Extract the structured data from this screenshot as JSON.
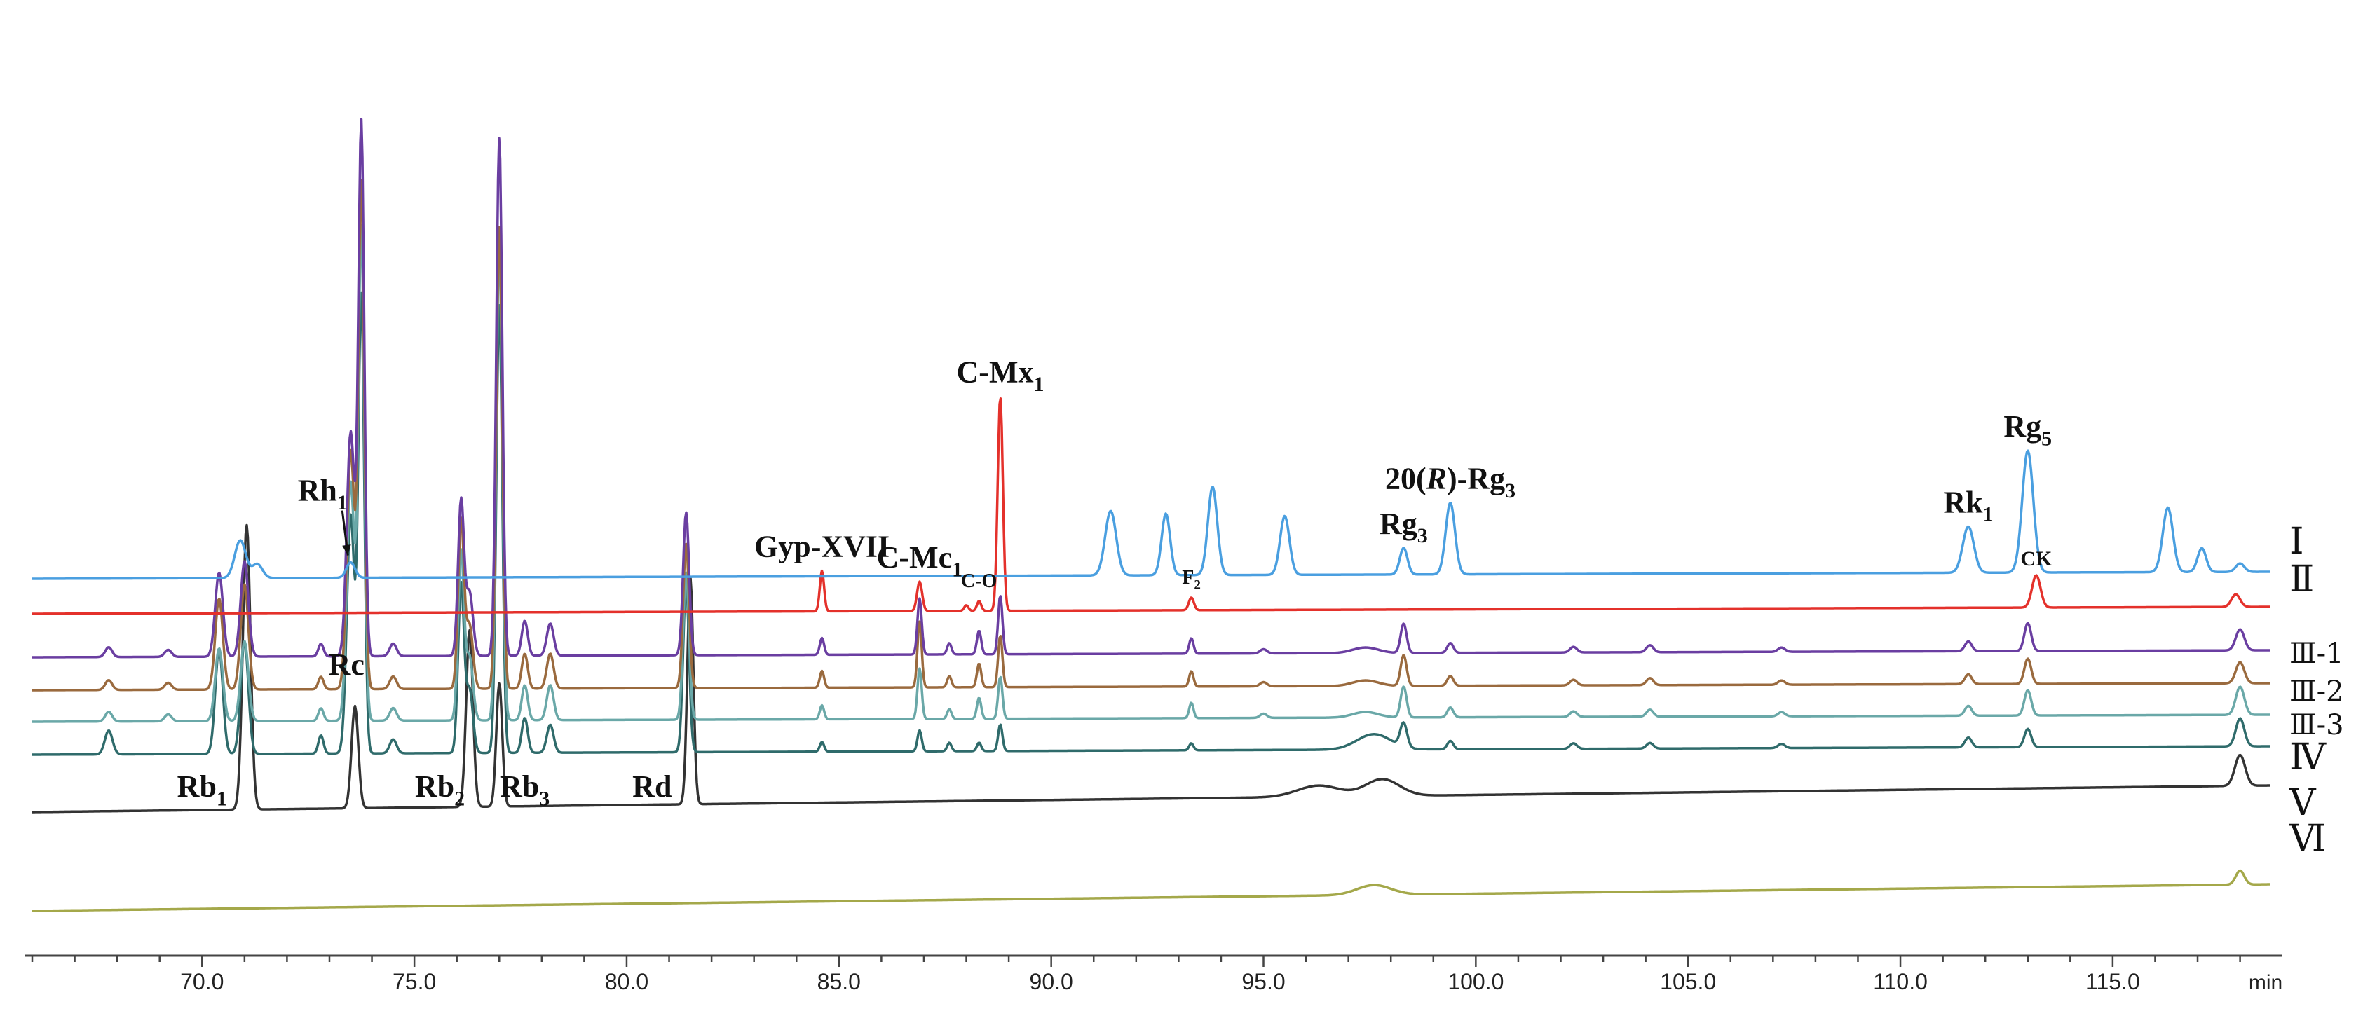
{
  "chart_data": {
    "type": "line",
    "title": "",
    "xlabel": "min",
    "ylabel": "",
    "xlim": [
      66,
      118.7
    ],
    "grid": false,
    "legend": "none",
    "x_ticks": [
      "70.0",
      "75.0",
      "80.0",
      "85.0",
      "90.0",
      "95.0",
      "100.0",
      "105.0",
      "110.0",
      "115.0"
    ],
    "x_tick_values": [
      70,
      75,
      80,
      85,
      90,
      95,
      100,
      105,
      110,
      115
    ],
    "series": [
      {
        "name": "Ⅰ",
        "color": "#4a9fe0",
        "baseline": [
          0,
          0.1
        ],
        "peaks": [
          {
            "t": 70.9,
            "h": 0.54,
            "w": 0.13
          },
          {
            "t": 71.3,
            "h": 0.2,
            "w": 0.12
          },
          {
            "t": 73.5,
            "h": 0.22,
            "w": 0.1
          },
          {
            "t": 91.4,
            "h": 0.92,
            "w": 0.13
          },
          {
            "t": 92.7,
            "h": 0.88,
            "w": 0.1
          },
          {
            "t": 93.8,
            "h": 1.26,
            "w": 0.11
          },
          {
            "t": 95.5,
            "h": 0.84,
            "w": 0.11
          },
          {
            "t": 98.3,
            "h": 0.38,
            "w": 0.09
          },
          {
            "t": 99.4,
            "h": 1.02,
            "w": 0.11
          },
          {
            "t": 111.6,
            "h": 0.66,
            "w": 0.13
          },
          {
            "t": 113.0,
            "h": 1.74,
            "w": 0.13
          },
          {
            "t": 116.3,
            "h": 0.92,
            "w": 0.12
          },
          {
            "t": 117.1,
            "h": 0.34,
            "w": 0.1
          },
          {
            "t": 118.0,
            "h": 0.12,
            "w": 0.1
          }
        ]
      },
      {
        "name": "Ⅱ",
        "color": "#e4312b",
        "baseline": [
          0,
          0.1
        ],
        "peaks": [
          {
            "t": 84.6,
            "h": 0.58,
            "w": 0.05
          },
          {
            "t": 86.9,
            "h": 0.42,
            "w": 0.06
          },
          {
            "t": 88.0,
            "h": 0.08,
            "w": 0.05
          },
          {
            "t": 88.3,
            "h": 0.14,
            "w": 0.05
          },
          {
            "t": 88.8,
            "h": 3.06,
            "w": 0.06
          },
          {
            "t": 93.3,
            "h": 0.18,
            "w": 0.06
          },
          {
            "t": 113.2,
            "h": 0.46,
            "w": 0.1
          },
          {
            "t": 117.9,
            "h": 0.18,
            "w": 0.1
          }
        ]
      },
      {
        "name": "Ⅲ-1",
        "color": "#6a3ea1",
        "baseline": [
          0,
          0.1
        ],
        "peaks": [
          {
            "t": 67.8,
            "h": 0.14,
            "w": 0.08
          },
          {
            "t": 69.2,
            "h": 0.1,
            "w": 0.08
          },
          {
            "t": 70.4,
            "h": 1.2,
            "w": 0.09
          },
          {
            "t": 71.0,
            "h": 1.36,
            "w": 0.09
          },
          {
            "t": 72.8,
            "h": 0.18,
            "w": 0.06
          },
          {
            "t": 73.5,
            "h": 3.2,
            "w": 0.09
          },
          {
            "t": 73.75,
            "h": 7.6,
            "w": 0.07
          },
          {
            "t": 74.5,
            "h": 0.18,
            "w": 0.08
          },
          {
            "t": 76.1,
            "h": 2.22,
            "w": 0.07
          },
          {
            "t": 76.3,
            "h": 0.9,
            "w": 0.08
          },
          {
            "t": 77.0,
            "h": 7.4,
            "w": 0.07
          },
          {
            "t": 77.6,
            "h": 0.5,
            "w": 0.07
          },
          {
            "t": 78.2,
            "h": 0.46,
            "w": 0.08
          },
          {
            "t": 81.4,
            "h": 2.04,
            "w": 0.07
          },
          {
            "t": 84.6,
            "h": 0.24,
            "w": 0.05
          },
          {
            "t": 86.9,
            "h": 0.8,
            "w": 0.05
          },
          {
            "t": 87.6,
            "h": 0.16,
            "w": 0.05
          },
          {
            "t": 88.3,
            "h": 0.34,
            "w": 0.05
          },
          {
            "t": 88.8,
            "h": 0.84,
            "w": 0.05
          },
          {
            "t": 93.3,
            "h": 0.22,
            "w": 0.05
          },
          {
            "t": 95.0,
            "h": 0.06,
            "w": 0.08
          },
          {
            "t": 97.4,
            "h": 0.08,
            "w": 0.3
          },
          {
            "t": 98.3,
            "h": 0.42,
            "w": 0.07
          },
          {
            "t": 99.4,
            "h": 0.14,
            "w": 0.07
          },
          {
            "t": 102.3,
            "h": 0.08,
            "w": 0.08
          },
          {
            "t": 104.1,
            "h": 0.1,
            "w": 0.08
          },
          {
            "t": 107.2,
            "h": 0.06,
            "w": 0.08
          },
          {
            "t": 111.6,
            "h": 0.14,
            "w": 0.08
          },
          {
            "t": 113.0,
            "h": 0.4,
            "w": 0.08
          },
          {
            "t": 118.0,
            "h": 0.3,
            "w": 0.1
          }
        ]
      },
      {
        "name": "Ⅲ-2",
        "color": "#9a6a3e",
        "baseline": [
          0,
          0.1
        ],
        "peaks": [
          {
            "t": 67.8,
            "h": 0.14,
            "w": 0.08
          },
          {
            "t": 69.2,
            "h": 0.1,
            "w": 0.08
          },
          {
            "t": 70.4,
            "h": 1.3,
            "w": 0.09
          },
          {
            "t": 71.0,
            "h": 1.5,
            "w": 0.09
          },
          {
            "t": 72.8,
            "h": 0.18,
            "w": 0.06
          },
          {
            "t": 73.5,
            "h": 3.4,
            "w": 0.09
          },
          {
            "t": 73.75,
            "h": 7.2,
            "w": 0.07
          },
          {
            "t": 74.5,
            "h": 0.18,
            "w": 0.08
          },
          {
            "t": 76.1,
            "h": 2.4,
            "w": 0.07
          },
          {
            "t": 76.3,
            "h": 0.9,
            "w": 0.08
          },
          {
            "t": 77.0,
            "h": 6.6,
            "w": 0.07
          },
          {
            "t": 77.6,
            "h": 0.5,
            "w": 0.07
          },
          {
            "t": 78.2,
            "h": 0.5,
            "w": 0.08
          },
          {
            "t": 81.4,
            "h": 2.06,
            "w": 0.07
          },
          {
            "t": 84.6,
            "h": 0.24,
            "w": 0.05
          },
          {
            "t": 86.9,
            "h": 0.94,
            "w": 0.05
          },
          {
            "t": 87.6,
            "h": 0.16,
            "w": 0.05
          },
          {
            "t": 88.3,
            "h": 0.34,
            "w": 0.05
          },
          {
            "t": 88.8,
            "h": 0.74,
            "w": 0.05
          },
          {
            "t": 93.3,
            "h": 0.22,
            "w": 0.05
          },
          {
            "t": 95.0,
            "h": 0.06,
            "w": 0.08
          },
          {
            "t": 97.4,
            "h": 0.08,
            "w": 0.3
          },
          {
            "t": 98.3,
            "h": 0.44,
            "w": 0.07
          },
          {
            "t": 99.4,
            "h": 0.14,
            "w": 0.07
          },
          {
            "t": 102.3,
            "h": 0.08,
            "w": 0.08
          },
          {
            "t": 104.1,
            "h": 0.1,
            "w": 0.08
          },
          {
            "t": 107.2,
            "h": 0.06,
            "w": 0.08
          },
          {
            "t": 111.6,
            "h": 0.14,
            "w": 0.08
          },
          {
            "t": 113.0,
            "h": 0.36,
            "w": 0.08
          },
          {
            "t": 118.0,
            "h": 0.3,
            "w": 0.1
          }
        ]
      },
      {
        "name": "Ⅲ-3",
        "color": "#6aa8a8",
        "baseline": [
          0,
          0.1
        ],
        "peaks": [
          {
            "t": 67.8,
            "h": 0.14,
            "w": 0.08
          },
          {
            "t": 69.2,
            "h": 0.1,
            "w": 0.08
          },
          {
            "t": 70.4,
            "h": 1.04,
            "w": 0.09
          },
          {
            "t": 71.0,
            "h": 1.14,
            "w": 0.09
          },
          {
            "t": 72.8,
            "h": 0.18,
            "w": 0.06
          },
          {
            "t": 73.5,
            "h": 3.4,
            "w": 0.09
          },
          {
            "t": 73.75,
            "h": 7.0,
            "w": 0.07
          },
          {
            "t": 74.5,
            "h": 0.18,
            "w": 0.08
          },
          {
            "t": 76.1,
            "h": 2.4,
            "w": 0.07
          },
          {
            "t": 76.3,
            "h": 0.9,
            "w": 0.08
          },
          {
            "t": 77.0,
            "h": 6.8,
            "w": 0.07
          },
          {
            "t": 77.6,
            "h": 0.5,
            "w": 0.07
          },
          {
            "t": 78.2,
            "h": 0.5,
            "w": 0.08
          },
          {
            "t": 81.4,
            "h": 2.1,
            "w": 0.07
          },
          {
            "t": 84.6,
            "h": 0.2,
            "w": 0.05
          },
          {
            "t": 86.9,
            "h": 0.72,
            "w": 0.05
          },
          {
            "t": 87.6,
            "h": 0.14,
            "w": 0.05
          },
          {
            "t": 88.3,
            "h": 0.3,
            "w": 0.05
          },
          {
            "t": 88.8,
            "h": 0.6,
            "w": 0.05
          },
          {
            "t": 93.3,
            "h": 0.22,
            "w": 0.05
          },
          {
            "t": 95.0,
            "h": 0.06,
            "w": 0.08
          },
          {
            "t": 97.4,
            "h": 0.08,
            "w": 0.3
          },
          {
            "t": 98.3,
            "h": 0.44,
            "w": 0.07
          },
          {
            "t": 99.4,
            "h": 0.14,
            "w": 0.07
          },
          {
            "t": 102.3,
            "h": 0.08,
            "w": 0.08
          },
          {
            "t": 104.1,
            "h": 0.1,
            "w": 0.08
          },
          {
            "t": 107.2,
            "h": 0.06,
            "w": 0.08
          },
          {
            "t": 111.6,
            "h": 0.14,
            "w": 0.08
          },
          {
            "t": 113.0,
            "h": 0.36,
            "w": 0.08
          },
          {
            "t": 118.0,
            "h": 0.4,
            "w": 0.1
          }
        ]
      },
      {
        "name": "Ⅳ",
        "color": "#2f6b6b",
        "baseline": [
          0,
          0.12
        ],
        "peaks": [
          {
            "t": 67.8,
            "h": 0.34,
            "w": 0.09
          },
          {
            "t": 70.4,
            "h": 1.5,
            "w": 0.09
          },
          {
            "t": 71.0,
            "h": 1.6,
            "w": 0.09
          },
          {
            "t": 72.8,
            "h": 0.26,
            "w": 0.06
          },
          {
            "t": 73.5,
            "h": 3.4,
            "w": 0.09
          },
          {
            "t": 73.75,
            "h": 6.5,
            "w": 0.07
          },
          {
            "t": 74.5,
            "h": 0.2,
            "w": 0.08
          },
          {
            "t": 76.1,
            "h": 2.4,
            "w": 0.07
          },
          {
            "t": 76.3,
            "h": 0.9,
            "w": 0.08
          },
          {
            "t": 77.0,
            "h": 6.4,
            "w": 0.07
          },
          {
            "t": 77.6,
            "h": 0.5,
            "w": 0.07
          },
          {
            "t": 78.2,
            "h": 0.4,
            "w": 0.08
          },
          {
            "t": 81.4,
            "h": 2.4,
            "w": 0.07
          },
          {
            "t": 84.6,
            "h": 0.14,
            "w": 0.05
          },
          {
            "t": 86.9,
            "h": 0.3,
            "w": 0.05
          },
          {
            "t": 87.6,
            "h": 0.12,
            "w": 0.05
          },
          {
            "t": 88.3,
            "h": 0.12,
            "w": 0.05
          },
          {
            "t": 88.8,
            "h": 0.38,
            "w": 0.05
          },
          {
            "t": 93.3,
            "h": 0.1,
            "w": 0.05
          },
          {
            "t": 97.6,
            "h": 0.22,
            "w": 0.4
          },
          {
            "t": 98.3,
            "h": 0.34,
            "w": 0.08
          },
          {
            "t": 99.4,
            "h": 0.12,
            "w": 0.07
          },
          {
            "t": 102.3,
            "h": 0.08,
            "w": 0.08
          },
          {
            "t": 104.1,
            "h": 0.08,
            "w": 0.08
          },
          {
            "t": 107.2,
            "h": 0.06,
            "w": 0.08
          },
          {
            "t": 111.6,
            "h": 0.14,
            "w": 0.08
          },
          {
            "t": 113.0,
            "h": 0.26,
            "w": 0.08
          },
          {
            "t": 118.0,
            "h": 0.4,
            "w": 0.1
          }
        ]
      },
      {
        "name": "Ⅴ",
        "color": "#333333",
        "baseline": [
          0,
          0.38
        ],
        "peaks": [
          {
            "t": 71.05,
            "h": 4.06,
            "w": 0.09
          },
          {
            "t": 73.6,
            "h": 1.46,
            "w": 0.08
          },
          {
            "t": 76.3,
            "h": 2.52,
            "w": 0.08
          },
          {
            "t": 77.0,
            "h": 1.76,
            "w": 0.07
          },
          {
            "t": 81.5,
            "h": 3.24,
            "w": 0.07
          },
          {
            "t": 96.3,
            "h": 0.16,
            "w": 0.5
          },
          {
            "t": 97.8,
            "h": 0.24,
            "w": 0.4
          },
          {
            "t": 118.0,
            "h": 0.44,
            "w": 0.12
          }
        ]
      },
      {
        "name": "Ⅵ",
        "color": "#a4a84a",
        "baseline": [
          0,
          0.38
        ],
        "peaks": [
          {
            "t": 97.6,
            "h": 0.14,
            "w": 0.4
          },
          {
            "t": 118.0,
            "h": 0.2,
            "w": 0.1
          }
        ]
      }
    ],
    "annotations": [
      {
        "text": "Rh",
        "sub": "1",
        "t": 73.5,
        "series": "Ⅰ",
        "arrow": true
      },
      {
        "text": "Gyp-XVII",
        "sub": "",
        "t": 84.6,
        "series": "Ⅱ"
      },
      {
        "text": "C-Mc",
        "sub": "1",
        "t": 86.9,
        "series": "Ⅱ"
      },
      {
        "text": "C-O",
        "sub": "",
        "t": 88.3,
        "series": "Ⅱ"
      },
      {
        "text": "C-Mx",
        "sub": "1",
        "t": 88.8,
        "series": "Ⅱ"
      },
      {
        "text": "F",
        "sub": "2",
        "t": 93.3,
        "series": "Ⅱ"
      },
      {
        "text": "Rg",
        "sub": "3",
        "t": 98.3,
        "series": "Ⅰ"
      },
      {
        "text": "20(R)-Rg",
        "sub": "3",
        "t": 99.4,
        "series": "Ⅰ"
      },
      {
        "text": "Rk",
        "sub": "1",
        "t": 111.6,
        "series": "Ⅰ"
      },
      {
        "text": "Rg",
        "sub": "5",
        "t": 113.0,
        "series": "Ⅰ"
      },
      {
        "text": "CK",
        "sub": "",
        "t": 113.2,
        "series": "Ⅱ"
      },
      {
        "text": "Rb",
        "sub": "1",
        "t": 70.0,
        "series": "Ⅴ"
      },
      {
        "text": "Rc",
        "sub": "",
        "t": 73.4,
        "series": "Ⅴ"
      },
      {
        "text": "Rb",
        "sub": "2",
        "t": 75.6,
        "series": "Ⅴ"
      },
      {
        "text": "Rb",
        "sub": "3",
        "t": 77.6,
        "series": "Ⅴ"
      },
      {
        "text": "Rd",
        "sub": "",
        "t": 80.6,
        "series": "Ⅴ"
      }
    ]
  }
}
